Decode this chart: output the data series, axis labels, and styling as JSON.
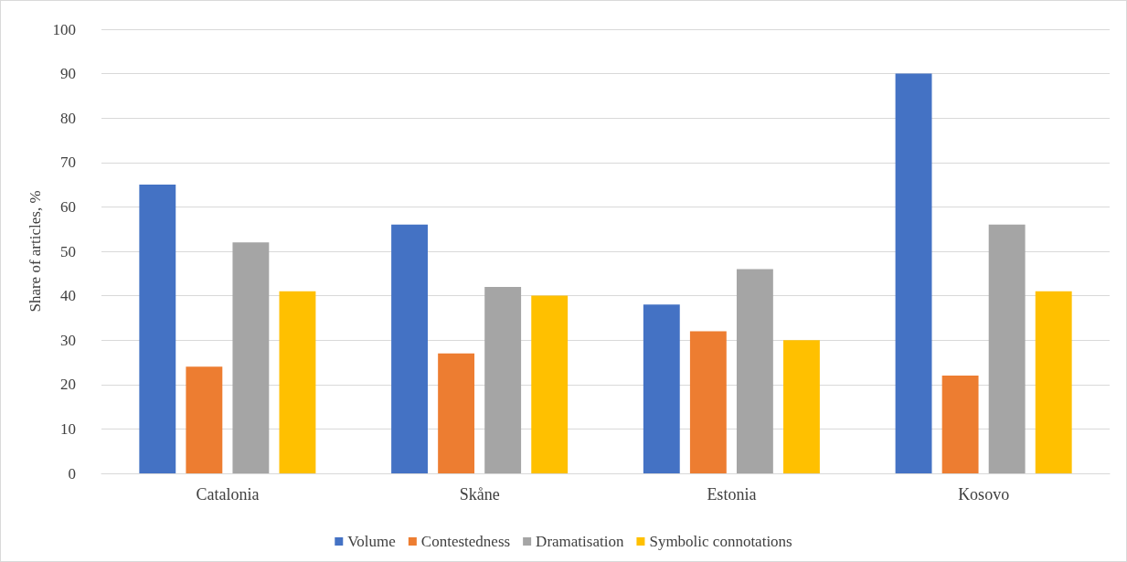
{
  "chart_data": {
    "type": "bar",
    "ylabel": "Share of articles, %",
    "categories": [
      "Catalonia",
      "Skåne",
      "Estonia",
      "Kosovo"
    ],
    "series": [
      {
        "name": "Volume",
        "color": "#4472c4",
        "values": [
          65,
          56,
          38,
          90
        ]
      },
      {
        "name": "Contestedness",
        "color": "#ed7d31",
        "values": [
          24,
          27,
          32,
          22
        ]
      },
      {
        "name": "Dramatisation",
        "color": "#a5a5a5",
        "values": [
          52,
          42,
          46,
          56
        ]
      },
      {
        "name": "Symbolic connotations",
        "color": "#ffc000",
        "values": [
          41,
          40,
          30,
          41
        ]
      }
    ],
    "ylim": [
      0,
      100
    ],
    "yticks": [
      0,
      10,
      20,
      30,
      40,
      50,
      60,
      70,
      80,
      90,
      100
    ],
    "grid": "y",
    "legend": "bottom"
  }
}
